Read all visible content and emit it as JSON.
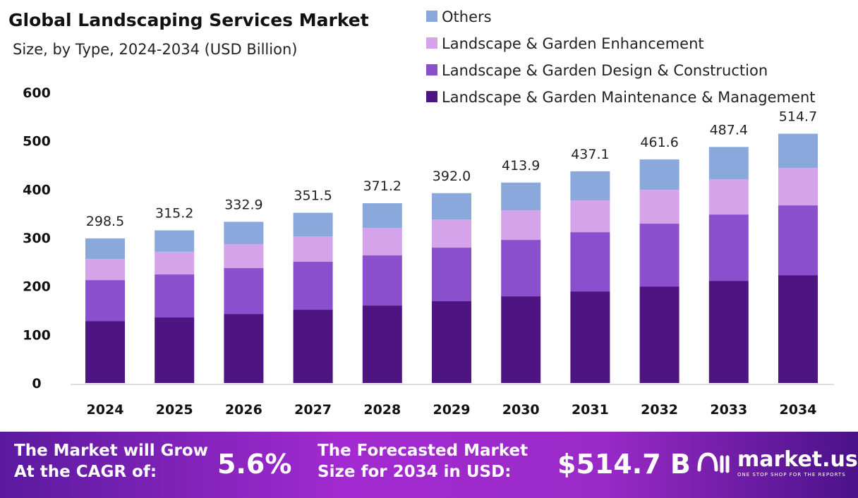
{
  "chart_data": {
    "type": "bar",
    "stacked": true,
    "title": "Global Landscaping Services Market",
    "subtitle": "Size, by Type, 2024-2034 (USD Billion)",
    "categories": [
      "2024",
      "2025",
      "2026",
      "2027",
      "2028",
      "2029",
      "2030",
      "2031",
      "2032",
      "2033",
      "2034"
    ],
    "series": [
      {
        "name": "Landscape & Garden Maintenance & Management",
        "color": "#4e1582",
        "values": [
          128,
          135.4,
          142.6,
          151.4,
          160.1,
          168.9,
          179,
          189.2,
          199.4,
          211,
          222.7
        ]
      },
      {
        "name": "Landscape & Garden Design & Construction",
        "color": "#8a4fcc",
        "values": [
          84.5,
          88.8,
          94.7,
          99.0,
          103.4,
          110.6,
          116.5,
          122.3,
          129.6,
          136.9,
          144.1
        ]
      },
      {
        "name": "Landscape & Garden Enhancement",
        "color": "#d4a3ea",
        "values": [
          43.5,
          46.9,
          49.5,
          52.4,
          56.7,
          58.2,
          61.1,
          65.5,
          69.8,
          72.8,
          77.2
        ]
      },
      {
        "name": "Others",
        "color": "#8aa8dc",
        "values": [
          42.5,
          44.1,
          46.1,
          48.7,
          51.0,
          54.3,
          57.3,
          60.1,
          62.8,
          66.7,
          70.7
        ]
      }
    ],
    "totals": [
      "298.5",
      "315.2",
      "332.9",
      "351.5",
      "371.2",
      "392.0",
      "413.9",
      "437.1",
      "461.6",
      "487.4",
      "514.7"
    ],
    "ylim": [
      0,
      600
    ],
    "yticks": [
      "0",
      "100",
      "200",
      "300",
      "400",
      "500",
      "600"
    ],
    "grid": false,
    "legend": "top-right"
  },
  "banner": {
    "cagr_label_1": "The Market will Grow",
    "cagr_label_2": "At the CAGR of:",
    "cagr_value": "5.6%",
    "forecast_label_1": "The Forecasted Market",
    "forecast_label_2": "Size for 2034 in USD:",
    "forecast_value": "$514.7 B",
    "logo_name": "market.us",
    "logo_tagline": "ONE STOP SHOP FOR THE REPORTS"
  }
}
